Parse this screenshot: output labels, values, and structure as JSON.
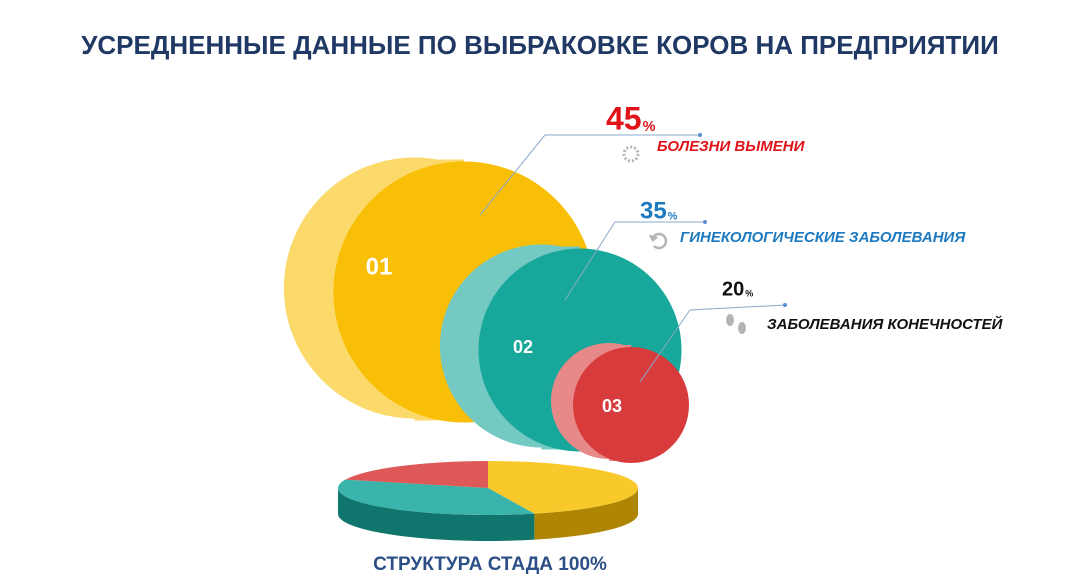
{
  "chart_data": {
    "type": "pie",
    "title": "УСРЕДНЕННЫЕ ДАННЫЕ ПО ВЫБРАКОВКЕ КОРОВ НА ПРЕДПРИЯТИИ",
    "categories": [
      "БОЛЕЗНИ ВЫМЕНИ",
      "ГИНЕКОЛОГИЧЕСКИЕ ЗАБОЛЕВАНИЯ",
      "ЗАБОЛЕВАНИЯ КОНЕЧНОСТЕЙ"
    ],
    "values": [
      45,
      35,
      20
    ],
    "value_unit": "%",
    "numbers": [
      "01",
      "02",
      "03"
    ],
    "colors": [
      "#f8bf06",
      "#17a79b",
      "#d83b3b"
    ],
    "label_colors": [
      "#e0131a",
      "#1e7ac0",
      "#111111"
    ],
    "footer": "СТРУКТУРА СТАДА 100%"
  }
}
